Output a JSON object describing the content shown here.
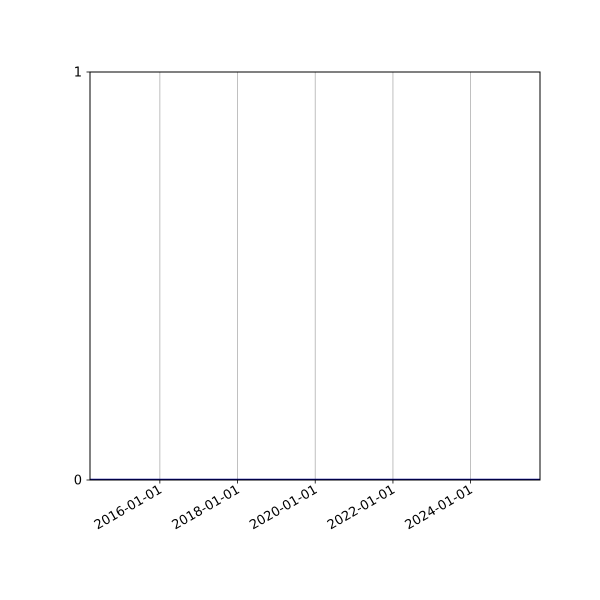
{
  "chart_data": {
    "type": "line",
    "title": "",
    "xlabel": "",
    "ylabel": "",
    "x_axis_type": "date",
    "xlim": [
      "2014-03-15",
      "2025-10-15"
    ],
    "ylim": [
      0,
      1
    ],
    "x_ticks": [
      "2016-01-01",
      "2018-01-01",
      "2020-01-01",
      "2022-01-01",
      "2024-01-01"
    ],
    "y_ticks": [
      "0",
      "1"
    ],
    "grid": {
      "x": true,
      "y": false
    },
    "series": [
      {
        "x": [
          "2014-03-15",
          "2025-10-15"
        ],
        "y": [
          0,
          0
        ],
        "color": "#00008b"
      }
    ],
    "colors": {
      "grid": "#b0b0b0",
      "axes": "#000000",
      "line": "#00008b"
    }
  }
}
